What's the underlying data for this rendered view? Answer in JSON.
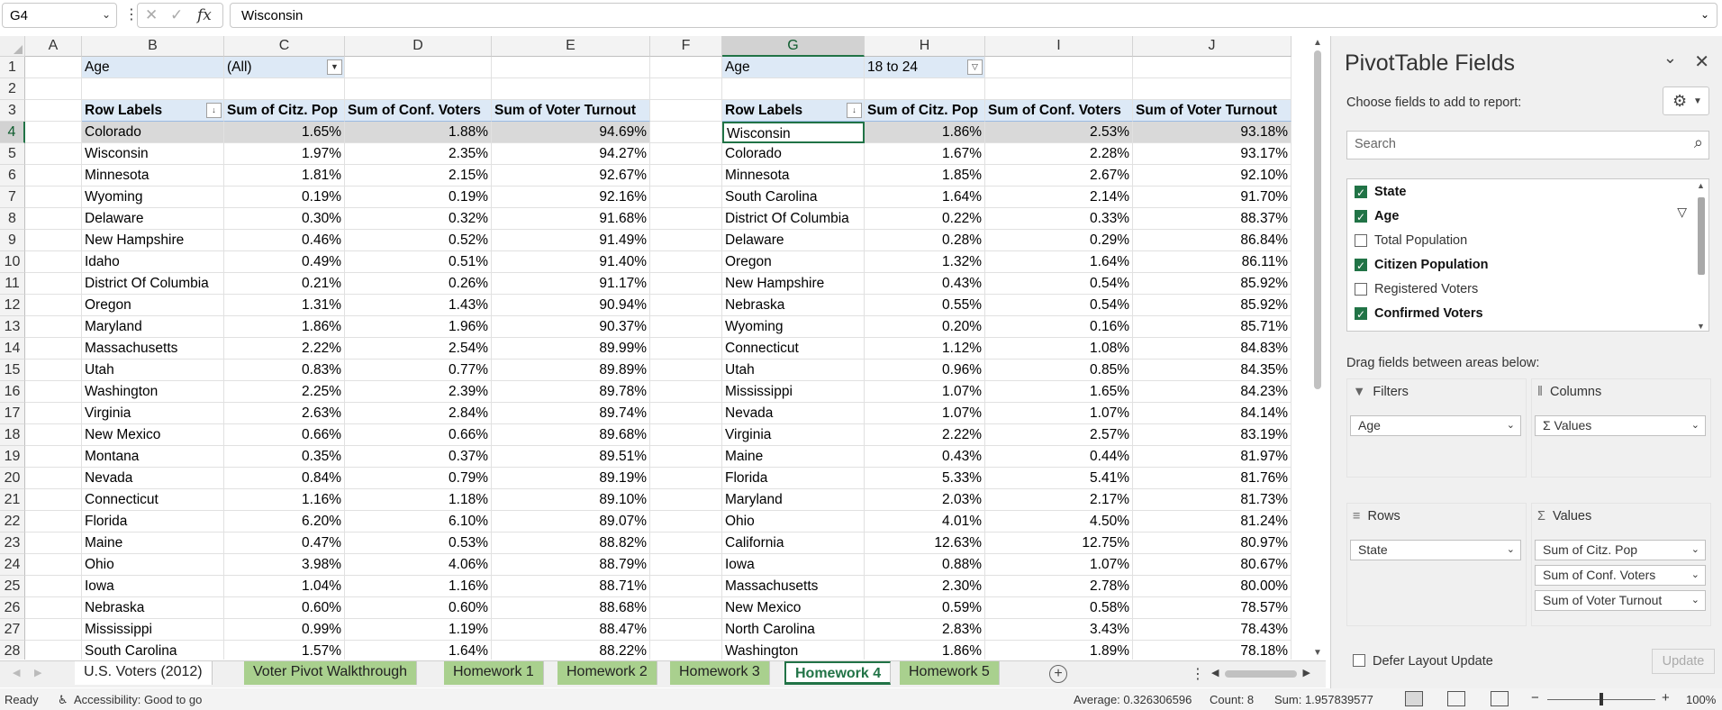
{
  "formula_bar": {
    "name_box": "G4",
    "fx_label": "fx",
    "value": "Wisconsin"
  },
  "columns": [
    "A",
    "B",
    "C",
    "D",
    "E",
    "F",
    "G",
    "H",
    "I",
    "J"
  ],
  "rows": [
    "1",
    "2",
    "3",
    "4",
    "5",
    "6",
    "7",
    "8",
    "9",
    "10",
    "11",
    "12",
    "13",
    "14",
    "15",
    "16",
    "17",
    "18",
    "19",
    "20",
    "21",
    "22",
    "23",
    "24",
    "25",
    "26",
    "27",
    "28"
  ],
  "pivot1": {
    "filter_label": "Age",
    "filter_value": "(All)",
    "headers": [
      "Row Labels",
      "Sum of Citz. Pop",
      "Sum of Conf. Voters",
      "Sum of Voter Turnout"
    ],
    "rows": [
      [
        "Colorado",
        "1.65%",
        "1.88%",
        "94.69%"
      ],
      [
        "Wisconsin",
        "1.97%",
        "2.35%",
        "94.27%"
      ],
      [
        "Minnesota",
        "1.81%",
        "2.15%",
        "92.67%"
      ],
      [
        "Wyoming",
        "0.19%",
        "0.19%",
        "92.16%"
      ],
      [
        "Delaware",
        "0.30%",
        "0.32%",
        "91.68%"
      ],
      [
        "New Hampshire",
        "0.46%",
        "0.52%",
        "91.49%"
      ],
      [
        "Idaho",
        "0.49%",
        "0.51%",
        "91.40%"
      ],
      [
        "District Of Columbia",
        "0.21%",
        "0.26%",
        "91.17%"
      ],
      [
        "Oregon",
        "1.31%",
        "1.43%",
        "90.94%"
      ],
      [
        "Maryland",
        "1.86%",
        "1.96%",
        "90.37%"
      ],
      [
        "Massachusetts",
        "2.22%",
        "2.54%",
        "89.99%"
      ],
      [
        "Utah",
        "0.83%",
        "0.77%",
        "89.89%"
      ],
      [
        "Washington",
        "2.25%",
        "2.39%",
        "89.78%"
      ],
      [
        "Virginia",
        "2.63%",
        "2.84%",
        "89.74%"
      ],
      [
        "New Mexico",
        "0.66%",
        "0.66%",
        "89.68%"
      ],
      [
        "Montana",
        "0.35%",
        "0.37%",
        "89.51%"
      ],
      [
        "Nevada",
        "0.84%",
        "0.79%",
        "89.19%"
      ],
      [
        "Connecticut",
        "1.16%",
        "1.18%",
        "89.10%"
      ],
      [
        "Florida",
        "6.20%",
        "6.10%",
        "89.07%"
      ],
      [
        "Maine",
        "0.47%",
        "0.53%",
        "88.82%"
      ],
      [
        "Ohio",
        "3.98%",
        "4.06%",
        "88.79%"
      ],
      [
        "Iowa",
        "1.04%",
        "1.16%",
        "88.71%"
      ],
      [
        "Nebraska",
        "0.60%",
        "0.60%",
        "88.68%"
      ],
      [
        "Mississippi",
        "0.99%",
        "1.19%",
        "88.47%"
      ],
      [
        "South Carolina",
        "1.57%",
        "1.64%",
        "88.22%"
      ]
    ]
  },
  "pivot2": {
    "filter_label": "Age",
    "filter_value": "18 to 24",
    "headers": [
      "Row Labels",
      "Sum of Citz. Pop",
      "Sum of Conf. Voters",
      "Sum of Voter Turnout"
    ],
    "rows": [
      [
        "Wisconsin",
        "1.86%",
        "2.53%",
        "93.18%"
      ],
      [
        "Colorado",
        "1.67%",
        "2.28%",
        "93.17%"
      ],
      [
        "Minnesota",
        "1.85%",
        "2.67%",
        "92.10%"
      ],
      [
        "South Carolina",
        "1.64%",
        "2.14%",
        "91.70%"
      ],
      [
        "District Of Columbia",
        "0.22%",
        "0.33%",
        "88.37%"
      ],
      [
        "Delaware",
        "0.28%",
        "0.29%",
        "86.84%"
      ],
      [
        "Oregon",
        "1.32%",
        "1.64%",
        "86.11%"
      ],
      [
        "New Hampshire",
        "0.43%",
        "0.54%",
        "85.92%"
      ],
      [
        "Nebraska",
        "0.55%",
        "0.54%",
        "85.92%"
      ],
      [
        "Wyoming",
        "0.20%",
        "0.16%",
        "85.71%"
      ],
      [
        "Connecticut",
        "1.12%",
        "1.08%",
        "84.83%"
      ],
      [
        "Utah",
        "0.96%",
        "0.85%",
        "84.35%"
      ],
      [
        "Mississippi",
        "1.07%",
        "1.65%",
        "84.23%"
      ],
      [
        "Nevada",
        "1.07%",
        "1.07%",
        "84.14%"
      ],
      [
        "Virginia",
        "2.22%",
        "2.57%",
        "83.19%"
      ],
      [
        "Maine",
        "0.43%",
        "0.44%",
        "81.97%"
      ],
      [
        "Florida",
        "5.33%",
        "5.41%",
        "81.76%"
      ],
      [
        "Maryland",
        "2.03%",
        "2.17%",
        "81.73%"
      ],
      [
        "Ohio",
        "4.01%",
        "4.50%",
        "81.24%"
      ],
      [
        "California",
        "12.63%",
        "12.75%",
        "80.97%"
      ],
      [
        "Iowa",
        "0.88%",
        "1.07%",
        "80.67%"
      ],
      [
        "Massachusetts",
        "2.30%",
        "2.78%",
        "80.00%"
      ],
      [
        "New Mexico",
        "0.59%",
        "0.58%",
        "78.57%"
      ],
      [
        "North Carolina",
        "2.83%",
        "3.43%",
        "78.43%"
      ],
      [
        "Washington",
        "1.86%",
        "1.89%",
        "78.18%"
      ]
    ]
  },
  "sheet_tabs": [
    "U.S. Voters (2012)",
    "Voter Pivot Walkthrough",
    "Homework 1",
    "Homework 2",
    "Homework 3",
    "Homework 4",
    "Homework 5"
  ],
  "active_tab": "Homework 4",
  "status": {
    "ready": "Ready",
    "accessibility": "Accessibility: Good to go",
    "average": "Average: 0.326306596",
    "count": "Count: 8",
    "sum": "Sum: 1.957839577",
    "zoom": "100%"
  },
  "panel": {
    "title": "PivotTable Fields",
    "choose_label": "Choose fields to add to report:",
    "search_placeholder": "Search",
    "fields": [
      {
        "label": "State",
        "checked": true
      },
      {
        "label": "Age",
        "checked": true
      },
      {
        "label": "Total Population",
        "checked": false
      },
      {
        "label": "Citizen Population",
        "checked": true
      },
      {
        "label": "Registered Voters",
        "checked": false
      },
      {
        "label": "Confirmed Voters",
        "checked": true
      }
    ],
    "drag_label": "Drag fields between areas below:",
    "filters_label": "Filters",
    "filters_items": [
      "Age"
    ],
    "columns_label": "Columns",
    "columns_items": [
      "Σ Values"
    ],
    "rows_label": "Rows",
    "rows_items": [
      "State"
    ],
    "values_label": "Values",
    "values_items": [
      "Sum of Citz. Pop",
      "Sum of Conf. Voters",
      "Sum of Voter Turnout"
    ],
    "defer_label": "Defer Layout Update",
    "update_label": "Update"
  }
}
